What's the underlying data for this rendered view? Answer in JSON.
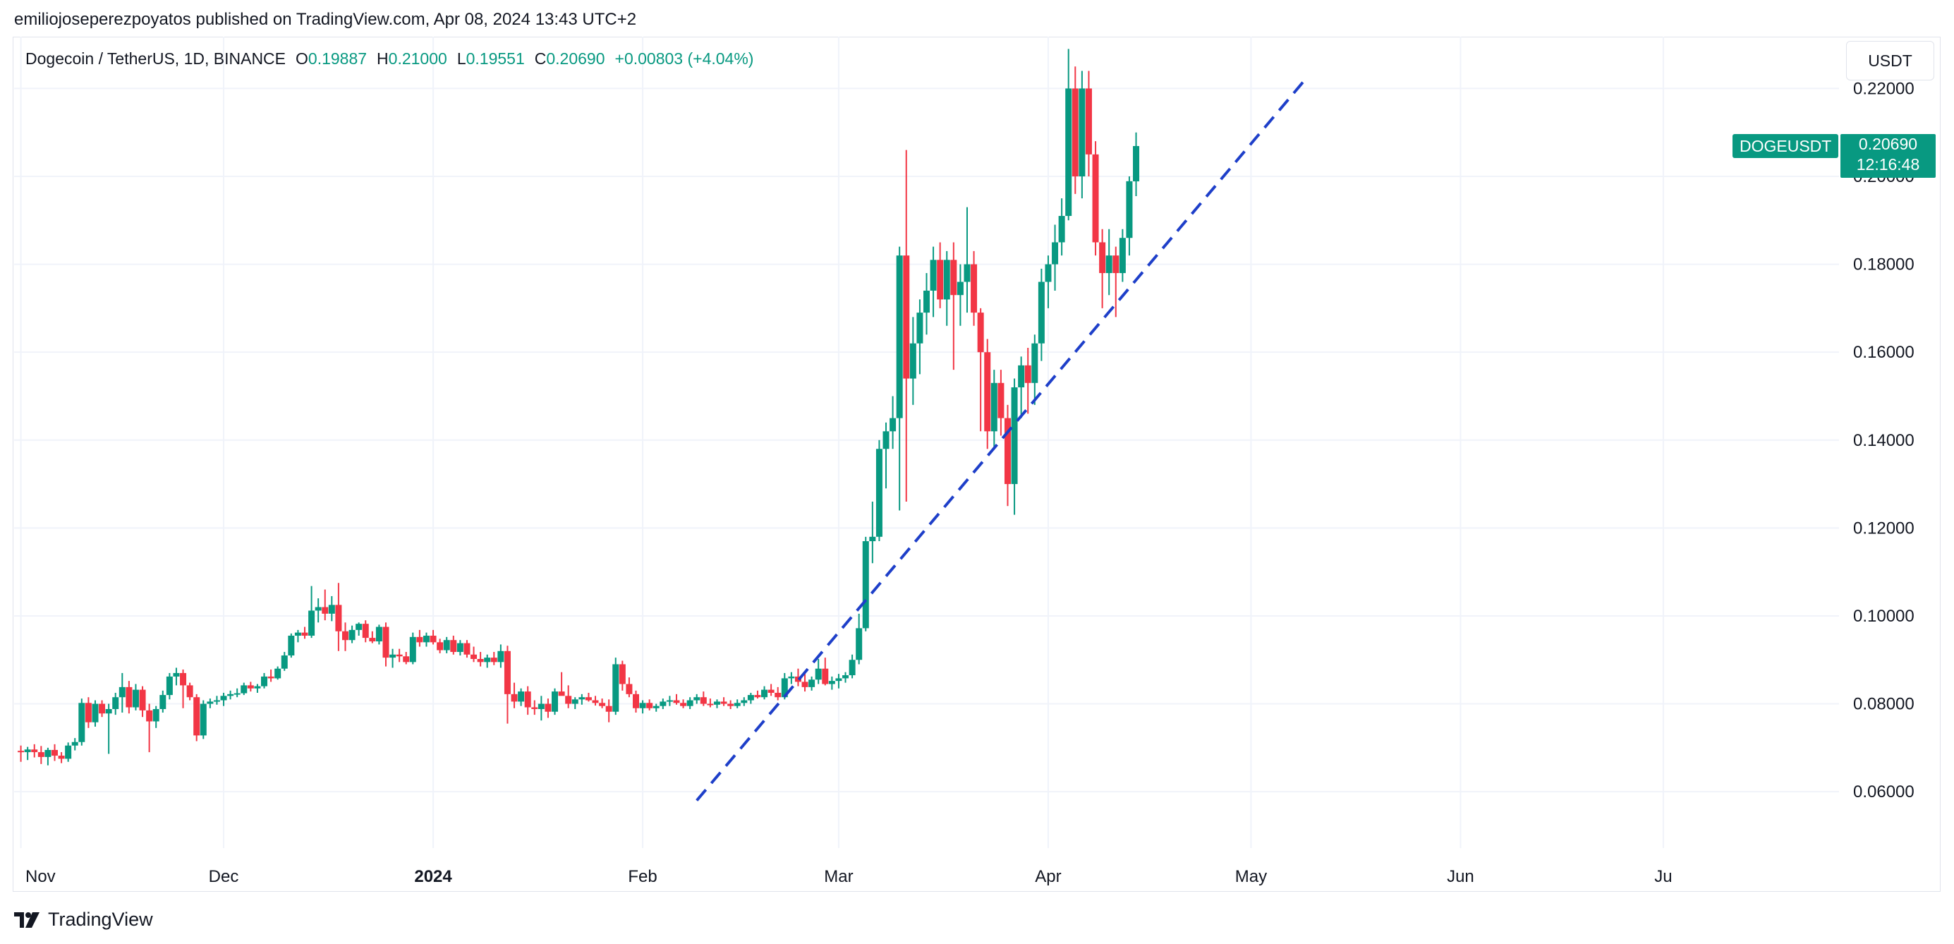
{
  "header": {
    "publisher_line": "emiliojoseperezpoyatos published on TradingView.com, Apr 08, 2024 13:43 UTC+2"
  },
  "legend": {
    "symbol": "Dogecoin / TetherUS, 1D, BINANCE",
    "o_label": "O",
    "o_value": "0.19887",
    "h_label": "H",
    "h_value": "0.21000",
    "l_label": "L",
    "l_value": "0.19551",
    "c_label": "C",
    "c_value": "0.20690",
    "change": "+0.00803 (+4.04%)"
  },
  "currency_button": "USDT",
  "price_badge": {
    "symbol": "DOGEUSDT",
    "price": "0.20690",
    "countdown": "12:16:48"
  },
  "footer": {
    "brand": "TradingView"
  },
  "colors": {
    "up": "#089981",
    "down": "#f23645",
    "trendline": "#1e3fc9",
    "grid": "#f0f3fa",
    "text": "#131722"
  },
  "chart_data": {
    "type": "candlestick",
    "title": "Dogecoin / TetherUS, 1D, BINANCE",
    "y_ticks": [
      "0.22000",
      "0.20000",
      "0.18000",
      "0.16000",
      "0.14000",
      "0.12000",
      "0.10000",
      "0.08000",
      "0.06000"
    ],
    "x_ticks": [
      "Nov",
      "Dec",
      "2024",
      "Feb",
      "Mar",
      "Apr",
      "May",
      "Jun",
      "Ju"
    ],
    "ylim": [
      0.0475,
      0.2305
    ],
    "x_domain_days": [
      -1,
      269
    ],
    "month_start_days": [
      0,
      30,
      61,
      92,
      121,
      152,
      182,
      213,
      243
    ],
    "candles_start_day": 0,
    "candles": [
      [
        0.0693,
        0.0705,
        0.0668,
        0.069
      ],
      [
        0.069,
        0.0702,
        0.0672,
        0.0696
      ],
      [
        0.0696,
        0.0708,
        0.0678,
        0.069
      ],
      [
        0.069,
        0.0704,
        0.0663,
        0.0679
      ],
      [
        0.0679,
        0.07,
        0.066,
        0.0695
      ],
      [
        0.0695,
        0.0708,
        0.067,
        0.0682
      ],
      [
        0.0682,
        0.069,
        0.0665,
        0.0675
      ],
      [
        0.0675,
        0.0712,
        0.0668,
        0.0705
      ],
      [
        0.0705,
        0.0722,
        0.0694,
        0.0713
      ],
      [
        0.0713,
        0.0812,
        0.0705,
        0.0802
      ],
      [
        0.0802,
        0.0815,
        0.0745,
        0.0758
      ],
      [
        0.0758,
        0.0808,
        0.0748,
        0.08
      ],
      [
        0.08,
        0.0808,
        0.077,
        0.0778
      ],
      [
        0.0778,
        0.08,
        0.0686,
        0.0788
      ],
      [
        0.0788,
        0.0825,
        0.0775,
        0.0815
      ],
      [
        0.0815,
        0.087,
        0.078,
        0.0838
      ],
      [
        0.0838,
        0.0852,
        0.0778,
        0.0792
      ],
      [
        0.0792,
        0.0845,
        0.0785,
        0.0832
      ],
      [
        0.0832,
        0.084,
        0.077,
        0.0785
      ],
      [
        0.0785,
        0.08,
        0.069,
        0.076
      ],
      [
        0.076,
        0.0795,
        0.0745,
        0.0788
      ],
      [
        0.0788,
        0.083,
        0.078,
        0.082
      ],
      [
        0.082,
        0.087,
        0.081,
        0.0862
      ],
      [
        0.0862,
        0.0882,
        0.0842,
        0.087
      ],
      [
        0.087,
        0.0878,
        0.079,
        0.0842
      ],
      [
        0.0842,
        0.0848,
        0.0808,
        0.0815
      ],
      [
        0.0815,
        0.0822,
        0.0715,
        0.0728
      ],
      [
        0.0728,
        0.0808,
        0.072,
        0.08
      ],
      [
        0.08,
        0.0812,
        0.079,
        0.0805
      ],
      [
        0.0805,
        0.0818,
        0.0798,
        0.0808
      ],
      [
        0.0808,
        0.0825,
        0.0795,
        0.0818
      ],
      [
        0.0818,
        0.083,
        0.081,
        0.0822
      ],
      [
        0.0822,
        0.0835,
        0.0815,
        0.0824
      ],
      [
        0.0824,
        0.0848,
        0.082,
        0.0842
      ],
      [
        0.0842,
        0.085,
        0.0828,
        0.0835
      ],
      [
        0.0835,
        0.0845,
        0.0825,
        0.084
      ],
      [
        0.084,
        0.087,
        0.0835,
        0.0862
      ],
      [
        0.0862,
        0.0878,
        0.085,
        0.0858
      ],
      [
        0.0858,
        0.0885,
        0.0855,
        0.088
      ],
      [
        0.088,
        0.0918,
        0.0875,
        0.091
      ],
      [
        0.091,
        0.096,
        0.0905,
        0.0955
      ],
      [
        0.0955,
        0.0968,
        0.094,
        0.0962
      ],
      [
        0.0962,
        0.0975,
        0.0948,
        0.0955
      ],
      [
        0.0955,
        0.1068,
        0.095,
        0.1012
      ],
      [
        0.1012,
        0.104,
        0.0985,
        0.102
      ],
      [
        0.102,
        0.106,
        0.099,
        0.1005
      ],
      [
        0.1005,
        0.1045,
        0.0988,
        0.1025
      ],
      [
        0.1025,
        0.1075,
        0.092,
        0.0965
      ],
      [
        0.0965,
        0.0985,
        0.092,
        0.0945
      ],
      [
        0.0945,
        0.0978,
        0.0938,
        0.0968
      ],
      [
        0.0968,
        0.0985,
        0.0955,
        0.0982
      ],
      [
        0.0982,
        0.099,
        0.094,
        0.095
      ],
      [
        0.095,
        0.0965,
        0.0938,
        0.0942
      ],
      [
        0.0942,
        0.098,
        0.0935,
        0.0975
      ],
      [
        0.0975,
        0.0985,
        0.0885,
        0.0905
      ],
      [
        0.0905,
        0.0925,
        0.0882,
        0.0912
      ],
      [
        0.0912,
        0.0925,
        0.0895,
        0.0908
      ],
      [
        0.0908,
        0.0918,
        0.089,
        0.0895
      ],
      [
        0.0895,
        0.0962,
        0.089,
        0.0952
      ],
      [
        0.0952,
        0.0968,
        0.093,
        0.094
      ],
      [
        0.094,
        0.0962,
        0.093,
        0.0955
      ],
      [
        0.0955,
        0.0968,
        0.0935,
        0.094
      ],
      [
        0.094,
        0.0948,
        0.0915,
        0.0922
      ],
      [
        0.0922,
        0.0952,
        0.0915,
        0.0945
      ],
      [
        0.0945,
        0.0955,
        0.0912,
        0.0918
      ],
      [
        0.0918,
        0.0945,
        0.091,
        0.0938
      ],
      [
        0.0938,
        0.0945,
        0.0905,
        0.0912
      ],
      [
        0.0912,
        0.093,
        0.0895,
        0.0902
      ],
      [
        0.0902,
        0.0918,
        0.0885,
        0.0895
      ],
      [
        0.0895,
        0.0912,
        0.0882,
        0.0905
      ],
      [
        0.0905,
        0.0918,
        0.0888,
        0.0895
      ],
      [
        0.0895,
        0.0935,
        0.0882,
        0.092
      ],
      [
        0.092,
        0.0932,
        0.0755,
        0.0822
      ],
      [
        0.0822,
        0.0848,
        0.079,
        0.0805
      ],
      [
        0.0805,
        0.0835,
        0.0795,
        0.0828
      ],
      [
        0.0828,
        0.084,
        0.0775,
        0.0792
      ],
      [
        0.0792,
        0.0808,
        0.0775,
        0.0788
      ],
      [
        0.0788,
        0.0818,
        0.0762,
        0.08
      ],
      [
        0.08,
        0.0812,
        0.0768,
        0.0782
      ],
      [
        0.0782,
        0.0835,
        0.0775,
        0.0828
      ],
      [
        0.0828,
        0.0872,
        0.082,
        0.0818
      ],
      [
        0.0818,
        0.0842,
        0.079,
        0.08
      ],
      [
        0.08,
        0.0815,
        0.0788,
        0.081
      ],
      [
        0.081,
        0.0822,
        0.0798,
        0.0815
      ],
      [
        0.0815,
        0.0825,
        0.0805,
        0.0808
      ],
      [
        0.0808,
        0.0818,
        0.0796,
        0.0802
      ],
      [
        0.0802,
        0.0812,
        0.079,
        0.0795
      ],
      [
        0.0795,
        0.081,
        0.0758,
        0.0782
      ],
      [
        0.0782,
        0.0905,
        0.0775,
        0.089
      ],
      [
        0.089,
        0.0898,
        0.083,
        0.0845
      ],
      [
        0.0845,
        0.086,
        0.0815,
        0.0822
      ],
      [
        0.0822,
        0.083,
        0.078,
        0.079
      ],
      [
        0.079,
        0.0808,
        0.0778,
        0.0802
      ],
      [
        0.0802,
        0.081,
        0.0785,
        0.079
      ],
      [
        0.079,
        0.08,
        0.0782,
        0.0795
      ],
      [
        0.0795,
        0.0812,
        0.0788,
        0.0805
      ],
      [
        0.0805,
        0.0818,
        0.0795,
        0.0808
      ],
      [
        0.0808,
        0.0822,
        0.0798,
        0.0802
      ],
      [
        0.0802,
        0.081,
        0.079,
        0.0795
      ],
      [
        0.0795,
        0.0815,
        0.0788,
        0.0808
      ],
      [
        0.0808,
        0.0822,
        0.08,
        0.0815
      ],
      [
        0.0815,
        0.0828,
        0.0795,
        0.08
      ],
      [
        0.08,
        0.0812,
        0.0792,
        0.0798
      ],
      [
        0.0798,
        0.081,
        0.079,
        0.0805
      ],
      [
        0.0805,
        0.0815,
        0.0795,
        0.08
      ],
      [
        0.08,
        0.0808,
        0.0788,
        0.0795
      ],
      [
        0.0795,
        0.081,
        0.079,
        0.0802
      ],
      [
        0.0802,
        0.0815,
        0.0795,
        0.0808
      ],
      [
        0.0808,
        0.0825,
        0.08,
        0.082
      ],
      [
        0.082,
        0.083,
        0.0812,
        0.0815
      ],
      [
        0.0815,
        0.084,
        0.081,
        0.0832
      ],
      [
        0.0832,
        0.0845,
        0.0818,
        0.0825
      ],
      [
        0.0825,
        0.0838,
        0.0808,
        0.0815
      ],
      [
        0.0815,
        0.087,
        0.081,
        0.0858
      ],
      [
        0.0858,
        0.0872,
        0.0845,
        0.0862
      ],
      [
        0.0862,
        0.088,
        0.084,
        0.085
      ],
      [
        0.085,
        0.0868,
        0.0828,
        0.0838
      ],
      [
        0.0838,
        0.0862,
        0.083,
        0.0855
      ],
      [
        0.0855,
        0.0902,
        0.0845,
        0.088
      ],
      [
        0.088,
        0.0905,
        0.0842,
        0.0845
      ],
      [
        0.0845,
        0.0862,
        0.0832,
        0.0852
      ],
      [
        0.0852,
        0.0868,
        0.0835,
        0.0858
      ],
      [
        0.0858,
        0.0872,
        0.0848,
        0.0865
      ],
      [
        0.0865,
        0.0912,
        0.0858,
        0.09
      ],
      [
        0.09,
        0.1005,
        0.089,
        0.0972
      ],
      [
        0.0972,
        0.118,
        0.0965,
        0.117
      ],
      [
        0.117,
        0.126,
        0.112,
        0.118
      ],
      [
        0.118,
        0.14,
        0.117,
        0.138
      ],
      [
        0.138,
        0.144,
        0.129,
        0.142
      ],
      [
        0.142,
        0.15,
        0.138,
        0.145
      ],
      [
        0.145,
        0.184,
        0.124,
        0.182
      ],
      [
        0.182,
        0.206,
        0.126,
        0.154
      ],
      [
        0.154,
        0.168,
        0.148,
        0.162
      ],
      [
        0.162,
        0.172,
        0.155,
        0.169
      ],
      [
        0.169,
        0.178,
        0.164,
        0.174
      ],
      [
        0.174,
        0.184,
        0.168,
        0.181
      ],
      [
        0.181,
        0.185,
        0.17,
        0.172
      ],
      [
        0.172,
        0.183,
        0.166,
        0.181
      ],
      [
        0.181,
        0.185,
        0.156,
        0.173
      ],
      [
        0.173,
        0.18,
        0.166,
        0.176
      ],
      [
        0.176,
        0.193,
        0.169,
        0.18
      ],
      [
        0.18,
        0.183,
        0.166,
        0.169
      ],
      [
        0.169,
        0.17,
        0.142,
        0.16
      ],
      [
        0.16,
        0.163,
        0.138,
        0.142
      ],
      [
        0.142,
        0.156,
        0.138,
        0.153
      ],
      [
        0.153,
        0.156,
        0.141,
        0.145
      ],
      [
        0.145,
        0.148,
        0.125,
        0.13
      ],
      [
        0.13,
        0.154,
        0.123,
        0.152
      ],
      [
        0.152,
        0.159,
        0.145,
        0.157
      ],
      [
        0.157,
        0.161,
        0.146,
        0.153
      ],
      [
        0.153,
        0.164,
        0.148,
        0.162
      ],
      [
        0.162,
        0.179,
        0.158,
        0.176
      ],
      [
        0.176,
        0.182,
        0.17,
        0.18
      ],
      [
        0.18,
        0.189,
        0.174,
        0.185
      ],
      [
        0.185,
        0.195,
        0.182,
        0.191
      ],
      [
        0.191,
        0.229,
        0.19,
        0.22
      ],
      [
        0.22,
        0.225,
        0.196,
        0.2
      ],
      [
        0.2,
        0.224,
        0.195,
        0.22
      ],
      [
        0.22,
        0.224,
        0.2,
        0.205
      ],
      [
        0.205,
        0.208,
        0.182,
        0.185
      ],
      [
        0.185,
        0.188,
        0.17,
        0.178
      ],
      [
        0.178,
        0.188,
        0.173,
        0.182
      ],
      [
        0.182,
        0.184,
        0.168,
        0.178
      ],
      [
        0.178,
        0.188,
        0.176,
        0.186
      ],
      [
        0.186,
        0.2,
        0.182,
        0.1989
      ],
      [
        0.19887,
        0.21,
        0.19551,
        0.2069
      ]
    ],
    "trendline": {
      "from": [
        100,
        0.058
      ],
      "to": [
        190,
        0.222
      ],
      "style": "dashed"
    },
    "last_price": 0.2069
  }
}
